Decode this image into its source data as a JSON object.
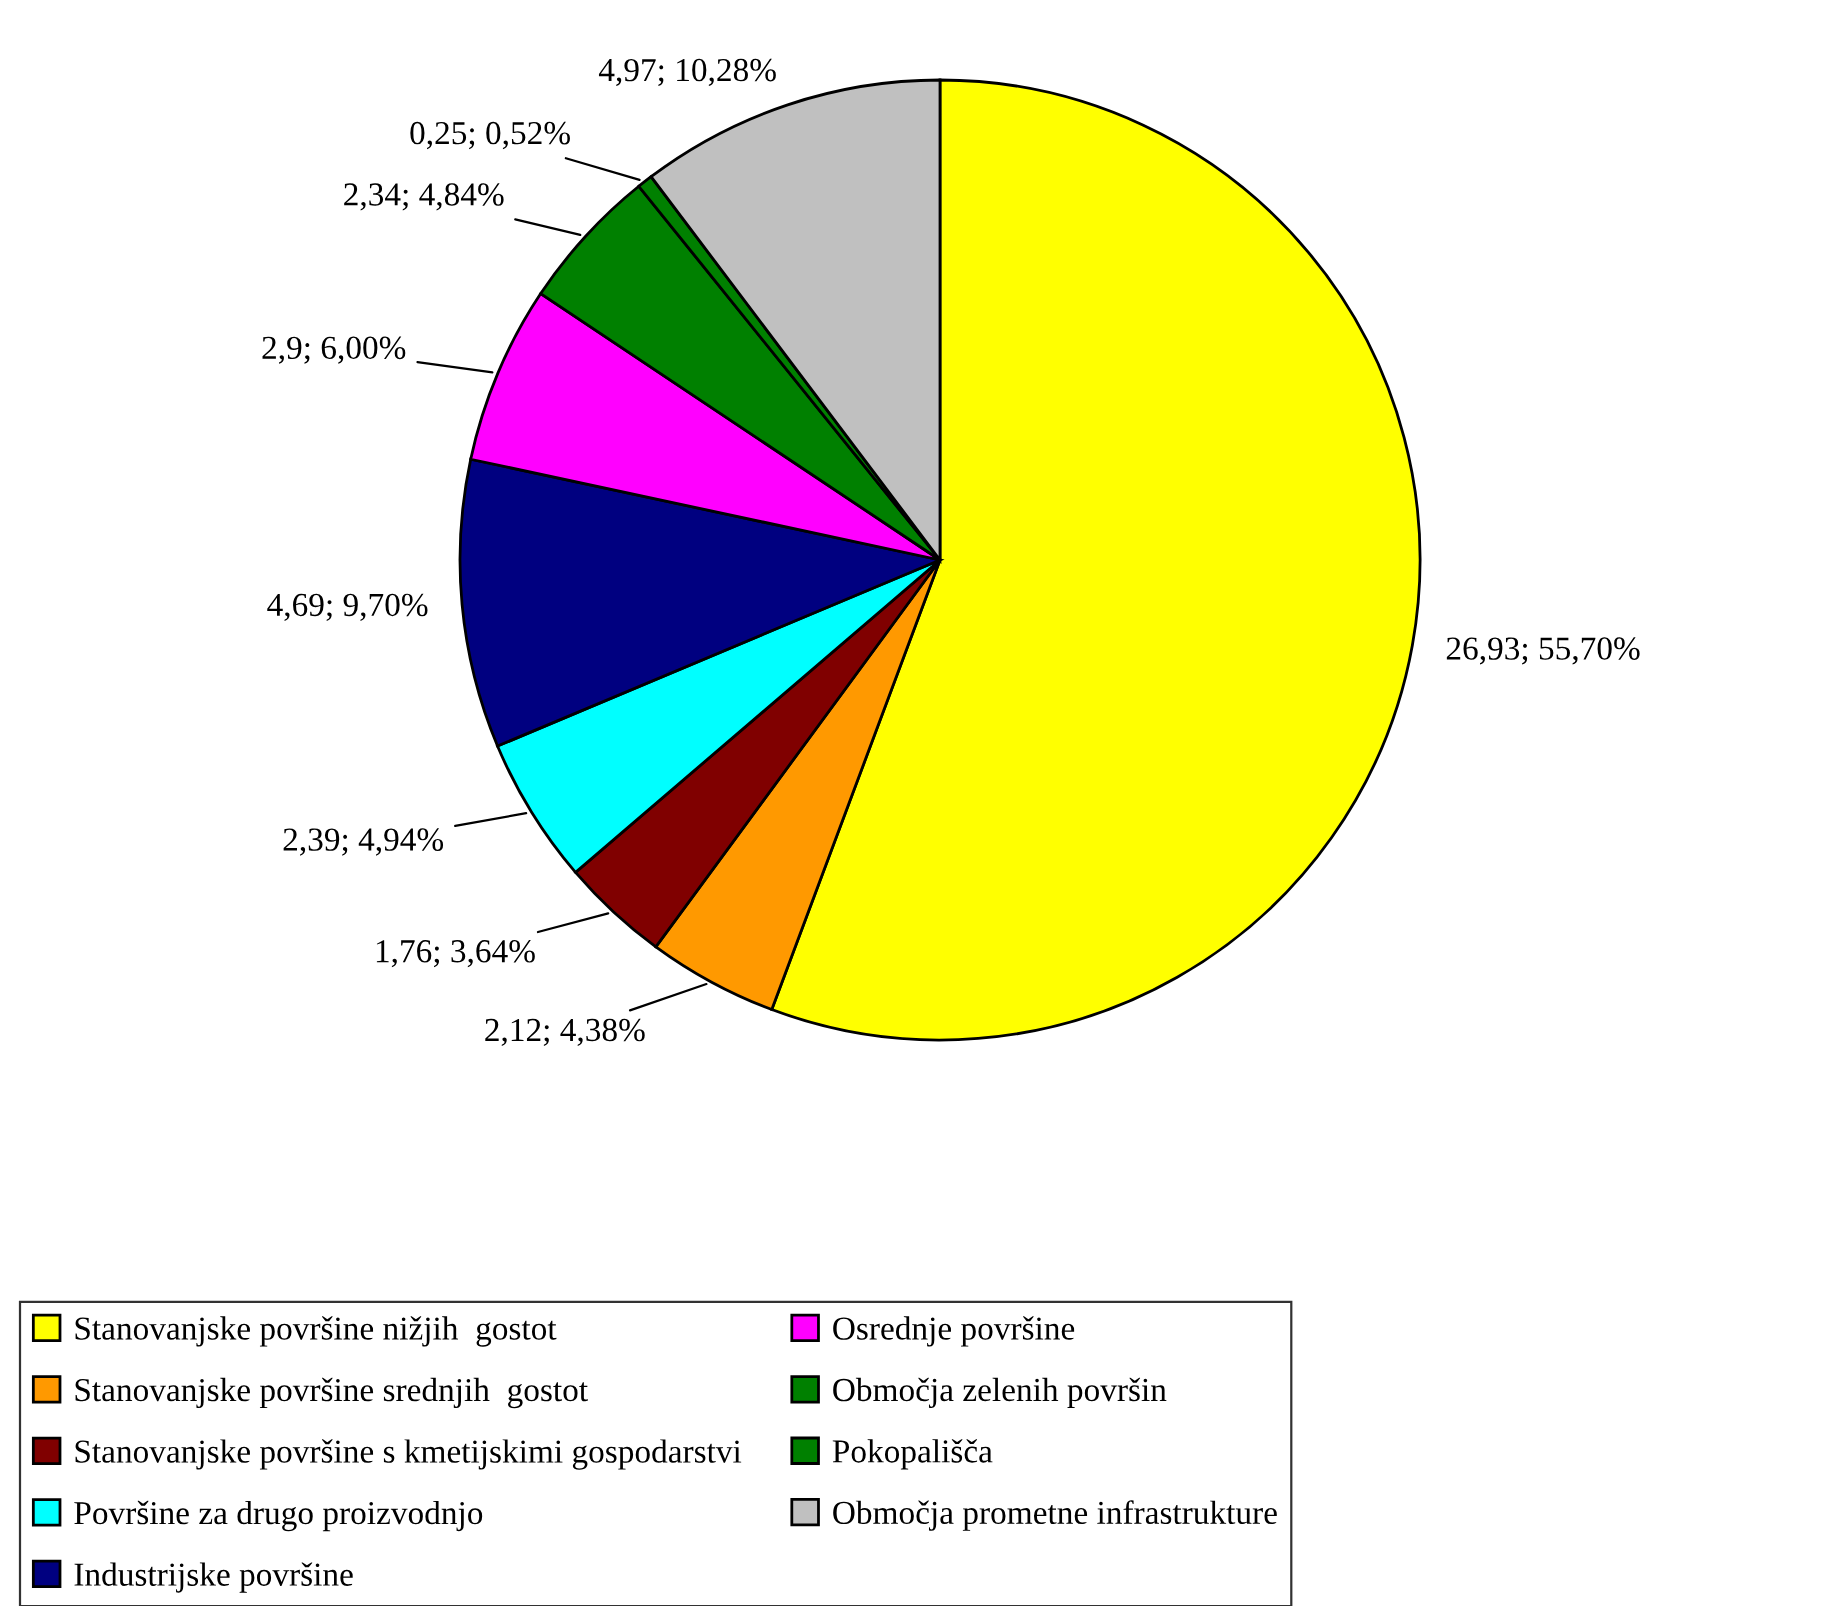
{
  "chart_data": {
    "type": "pie",
    "categories": [
      "Stanovanjske površine nižjih  gostot",
      "Stanovanjske površine srednjih  gostot",
      "Stanovanjske površine s kmetijskimi gospodarstvi",
      "Površine za drugo proizvodnjo",
      "Industrijske površine",
      "Osrednje površine",
      "Območja zelenih površin",
      "Pokopališča",
      "Območja prometne infrastrukture"
    ],
    "values": [
      26.93,
      2.12,
      1.76,
      2.39,
      4.69,
      2.9,
      2.34,
      0.25,
      4.97
    ],
    "value_labels": [
      "26,93; 55,70%",
      "2,12; 4,38%",
      "1,76; 3,64%",
      "2,39; 4,94%",
      "4,69; 9,70%",
      "2,9; 6,00%",
      "2,34; 4,84%",
      "0,25; 0,52%",
      "4,97; 10,28%"
    ],
    "colors": [
      "#ffff00",
      "#ff9900",
      "#800000",
      "#00ffff",
      "#000080",
      "#ff00ff",
      "#008000",
      "#008000",
      "#c0c0c0"
    ],
    "legend": "bottom"
  }
}
